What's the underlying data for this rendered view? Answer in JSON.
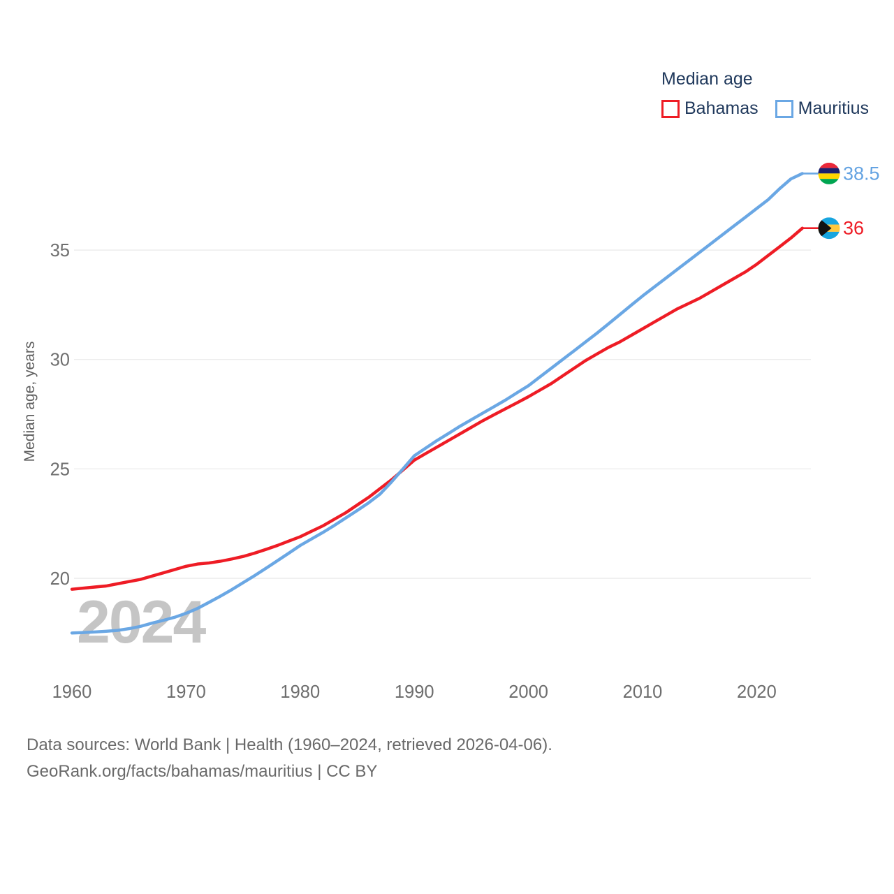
{
  "legend": {
    "title": "Median age",
    "items": [
      {
        "label": "Bahamas",
        "color": "#ee1c25"
      },
      {
        "label": "Mauritius",
        "color": "#6aa7e4"
      }
    ]
  },
  "watermark": "2024",
  "y_axis": {
    "title": "Median age, years",
    "ticks": [
      20,
      25,
      30,
      35
    ]
  },
  "x_axis": {
    "ticks": [
      1960,
      1970,
      1980,
      1990,
      2000,
      2010,
      2020
    ]
  },
  "end_labels": [
    {
      "series": "Mauritius",
      "value": "38.5",
      "color": "#64a3e2",
      "flag": "mauritius"
    },
    {
      "series": "Bahamas",
      "value": "36",
      "color": "#ee1c25",
      "flag": "bahamas"
    }
  ],
  "footer": {
    "line1": "Data sources: World Bank | Health (1960–2024, retrieved 2026-04-06).",
    "line2": "GeoRank.org/facts/bahamas/mauritius | CC BY"
  },
  "colors": {
    "bahamas_line": "#ee1c25",
    "mauritius_line": "#6aa7e4",
    "gridline": "#ececec",
    "tick_text": "#6e6e6e",
    "legend_text": "#20395c",
    "watermark": "#c5c5c5",
    "footer_text": "#696969",
    "flag_mauritius": [
      "#ea2839",
      "#1a206d",
      "#ffd500",
      "#00a551"
    ],
    "flag_bahamas": {
      "aqua": "#17a5df",
      "gold": "#ffc83d",
      "black": "#111111"
    }
  },
  "chart_data": {
    "type": "line",
    "title": "Median age",
    "xlabel": "",
    "ylabel": "Median age, years",
    "x_start": 1960,
    "x_end": 2024,
    "x_step": 1,
    "ylim": [
      17,
      39.5
    ],
    "grid": "horizontal",
    "legend_position": "top-right",
    "series": [
      {
        "name": "Bahamas",
        "color": "#ee1c25",
        "end_value": 36,
        "values": [
          19.5,
          19.55,
          19.6,
          19.65,
          19.75,
          19.85,
          19.95,
          20.1,
          20.25,
          20.4,
          20.55,
          20.65,
          20.7,
          20.78,
          20.88,
          21.0,
          21.15,
          21.32,
          21.5,
          21.7,
          21.9,
          22.15,
          22.4,
          22.7,
          23.0,
          23.35,
          23.7,
          24.1,
          24.5,
          24.95,
          25.4,
          25.7,
          26.0,
          26.3,
          26.6,
          26.9,
          27.2,
          27.48,
          27.75,
          28.02,
          28.3,
          28.6,
          28.9,
          29.25,
          29.6,
          29.95,
          30.25,
          30.55,
          30.8,
          31.1,
          31.4,
          31.7,
          32.0,
          32.3,
          32.55,
          32.8,
          33.1,
          33.4,
          33.7,
          34.0,
          34.35,
          34.75,
          35.15,
          35.55,
          36.0
        ]
      },
      {
        "name": "Mauritius",
        "color": "#6aa7e4",
        "end_value": 38.5,
        "values": [
          17.5,
          17.52,
          17.55,
          17.58,
          17.62,
          17.7,
          17.8,
          17.95,
          18.08,
          18.22,
          18.4,
          18.62,
          18.9,
          19.18,
          19.48,
          19.8,
          20.12,
          20.46,
          20.8,
          21.15,
          21.5,
          21.8,
          22.1,
          22.42,
          22.76,
          23.1,
          23.45,
          23.85,
          24.4,
          25.0,
          25.6,
          25.95,
          26.3,
          26.62,
          26.95,
          27.25,
          27.55,
          27.85,
          28.15,
          28.48,
          28.8,
          29.2,
          29.6,
          30.0,
          30.4,
          30.8,
          31.2,
          31.62,
          32.05,
          32.48,
          32.9,
          33.3,
          33.7,
          34.1,
          34.5,
          34.9,
          35.3,
          35.7,
          36.1,
          36.5,
          36.9,
          37.3,
          37.8,
          38.25,
          38.5
        ]
      }
    ]
  }
}
